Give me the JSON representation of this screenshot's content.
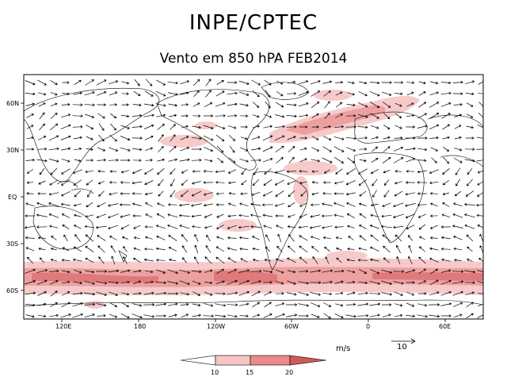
{
  "header": {
    "title": "INPE/CPTEC",
    "subtitle": "Vento em 850 hPA FEB2014"
  },
  "axes": {
    "lat_labels": [
      "60N",
      "30N",
      "EQ",
      "30S",
      "60S"
    ],
    "lon_labels": [
      "120E",
      "180",
      "120W",
      "60W",
      "0",
      "60E"
    ]
  },
  "legend": {
    "units": "m/s",
    "reference_vector": "10",
    "ticks": [
      "10",
      "15",
      "20"
    ],
    "colors": [
      "#ffffff",
      "#f7c4c4",
      "#e88a8a",
      "#d05a5a"
    ]
  },
  "colors": {
    "shade_light": "#f7caca",
    "shade_mid": "#eda0a0",
    "shade_dark": "#e07a7a"
  }
}
